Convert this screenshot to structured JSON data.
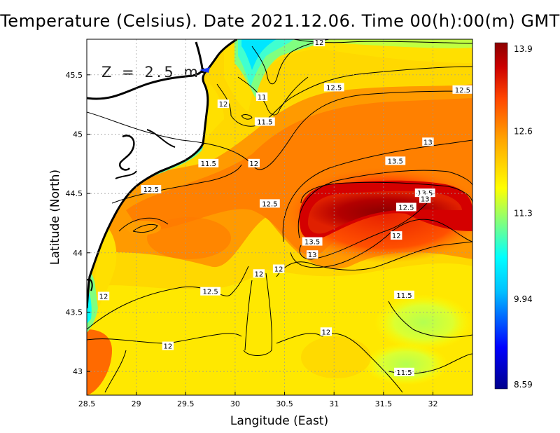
{
  "title": "Temperature (Celsius). Date 2021.12.06. Time 00(h):00(m) GMT",
  "depth_label": "Z = 2.5 m",
  "axes": {
    "xlabel": "Langitude (East)",
    "ylabel": "Latitude (North)",
    "x_ticks": [
      "28.5",
      "29",
      "29.5",
      "30",
      "30.5",
      "31",
      "31.5",
      "32"
    ],
    "y_ticks": [
      "45.5",
      "45",
      "44.5",
      "44",
      "43.5",
      "43"
    ],
    "x_range": [
      28.5,
      32.4
    ],
    "y_range": [
      42.8,
      45.8
    ]
  },
  "colorbar": {
    "ticks": [
      "13.9",
      "12.6",
      "11.3",
      "9.94",
      "8.59"
    ],
    "min": 8.59,
    "max": 13.9,
    "colors": [
      "#00008b",
      "#0000ff",
      "#00bfff",
      "#00ffff",
      "#7fff7f",
      "#ffff00",
      "#ffa500",
      "#ff4500",
      "#cc0000",
      "#8b0000"
    ]
  },
  "contour_labels": [
    {
      "text": "12",
      "lon": 30.85,
      "lat": 45.77
    },
    {
      "text": "12.5",
      "lon": 31.0,
      "lat": 45.39
    },
    {
      "text": "12.5",
      "lon": 32.3,
      "lat": 45.37
    },
    {
      "text": "11",
      "lon": 30.27,
      "lat": 45.31
    },
    {
      "text": "12",
      "lon": 29.88,
      "lat": 45.25
    },
    {
      "text": "11.5",
      "lon": 30.3,
      "lat": 45.1
    },
    {
      "text": "13",
      "lon": 31.95,
      "lat": 44.93
    },
    {
      "text": "13.5",
      "lon": 31.62,
      "lat": 44.77
    },
    {
      "text": "12",
      "lon": 30.19,
      "lat": 44.75
    },
    {
      "text": "11.5",
      "lon": 29.73,
      "lat": 44.75
    },
    {
      "text": "12.5",
      "lon": 29.15,
      "lat": 44.53
    },
    {
      "text": "13.5",
      "lon": 31.92,
      "lat": 44.5
    },
    {
      "text": "13",
      "lon": 31.92,
      "lat": 44.45
    },
    {
      "text": "12.5",
      "lon": 30.35,
      "lat": 44.41
    },
    {
      "text": "12.5",
      "lon": 31.73,
      "lat": 44.38
    },
    {
      "text": "12",
      "lon": 31.63,
      "lat": 44.14
    },
    {
      "text": "13.5",
      "lon": 30.78,
      "lat": 44.09
    },
    {
      "text": "13",
      "lon": 30.78,
      "lat": 43.98
    },
    {
      "text": "12",
      "lon": 30.44,
      "lat": 43.86
    },
    {
      "text": "12",
      "lon": 30.24,
      "lat": 43.82
    },
    {
      "text": "12.5",
      "lon": 29.75,
      "lat": 43.67
    },
    {
      "text": "12",
      "lon": 28.67,
      "lat": 43.63
    },
    {
      "text": "11.5",
      "lon": 31.71,
      "lat": 43.64
    },
    {
      "text": "12",
      "lon": 30.92,
      "lat": 43.33
    },
    {
      "text": "12",
      "lon": 29.32,
      "lat": 43.21
    },
    {
      "text": "11.5",
      "lon": 31.71,
      "lat": 42.99
    }
  ]
}
